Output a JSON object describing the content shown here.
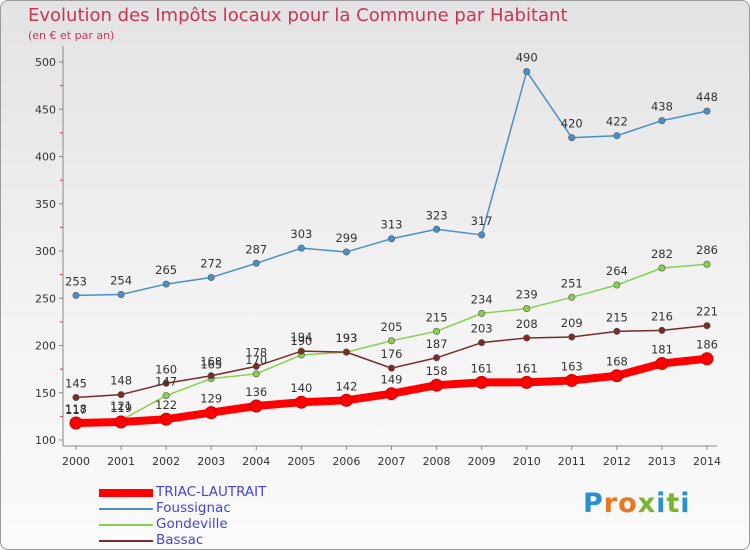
{
  "header": {
    "title": "Evolution des Impôts locaux pour la Commune par Habitant",
    "subtitle": "(en € et par an)"
  },
  "logo": {
    "text": "Proxiti",
    "colors": [
      "#2a8fd0",
      "#e8781e",
      "#7ab52b"
    ]
  },
  "chart_data": {
    "type": "line",
    "title": "Evolution des Impôts locaux pour la Commune par Habitant",
    "subtitle": "(en € et par an)",
    "x": [
      2000,
      2001,
      2002,
      2003,
      2004,
      2005,
      2006,
      2007,
      2008,
      2009,
      2010,
      2011,
      2012,
      2013,
      2014
    ],
    "ylim": [
      100,
      500
    ],
    "yticks": [
      100,
      150,
      200,
      250,
      300,
      350,
      400,
      450,
      500
    ],
    "grid": false,
    "legend_position": "bottom-left",
    "series": [
      {
        "name": "TRIAC-LAUTRAIT",
        "color": "#ff0000",
        "values": [
          118,
          119,
          122,
          129,
          136,
          140,
          142,
          149,
          158,
          161,
          161,
          163,
          168,
          181,
          186
        ],
        "labels": [
          "118",
          "119",
          "122",
          "129",
          "136",
          "140",
          "142",
          "149",
          "158",
          "161",
          "161",
          "163",
          "168",
          "181",
          "186"
        ]
      },
      {
        "name": "Foussignac",
        "color": "#4a90c8",
        "values": [
          253,
          254,
          265,
          272,
          287,
          303,
          299,
          313,
          323,
          317,
          490,
          420,
          422,
          438,
          448
        ],
        "labels": [
          "253",
          "254",
          "265",
          "272",
          "287",
          "303",
          "299",
          "313",
          "323",
          "317",
          "490",
          "420",
          "422",
          "438",
          "448"
        ]
      },
      {
        "name": "Gondeville",
        "color": "#88d050",
        "values": [
          117,
          121,
          147,
          165,
          170,
          190,
          193,
          205,
          215,
          234,
          239,
          251,
          264,
          282,
          286
        ],
        "labels": [
          "117",
          "121",
          "147",
          "165",
          "170",
          "190",
          "193",
          "205",
          "215",
          "234",
          "239",
          "251",
          "264",
          "282",
          "286"
        ]
      },
      {
        "name": "Bassac",
        "color": "#7a2a2a",
        "values": [
          145,
          148,
          160,
          168,
          178,
          194,
          193,
          176,
          187,
          203,
          208,
          209,
          215,
          216,
          221
        ],
        "labels": [
          "145",
          "148",
          "160",
          "168",
          "178",
          "194",
          "193",
          "176",
          "187",
          "203",
          "208",
          "209",
          "215",
          "216",
          "221"
        ]
      }
    ]
  }
}
